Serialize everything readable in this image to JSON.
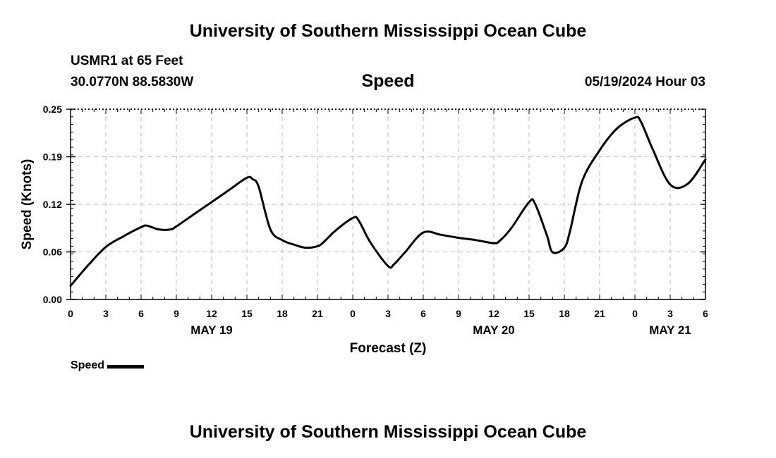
{
  "header": {
    "title": "University of Southern Mississippi Ocean Cube",
    "station": "USMR1 at 65 Feet",
    "coords": "30.0770N  88.5830W",
    "chart_title": "Speed",
    "date": "05/19/2024 Hour 03"
  },
  "footer": {
    "title": "University of Southern Mississippi Ocean Cube"
  },
  "legend": {
    "label": "Speed",
    "color": "#000000"
  },
  "chart_data": {
    "type": "line",
    "title": "Speed",
    "xlabel": "Forecast (Z)",
    "ylabel": "Speed (Knots)",
    "x_unit": "hours since 05/19/2024 00Z",
    "xlim": [
      0,
      54
    ],
    "ylim": [
      0,
      0.25
    ],
    "grid": true,
    "legend_position": "bottom-left",
    "x_tick_values": [
      0,
      3,
      6,
      9,
      12,
      15,
      18,
      21,
      24,
      27,
      30,
      33,
      36,
      39,
      42,
      45,
      48,
      51,
      54
    ],
    "x_tick_labels": [
      "0",
      "3",
      "6",
      "9",
      "12",
      "15",
      "18",
      "21",
      "0",
      "3",
      "6",
      "9",
      "12",
      "15",
      "18",
      "21",
      "0",
      "3",
      "6"
    ],
    "y_tick_values": [
      0.0,
      0.0625,
      0.125,
      0.1875,
      0.25
    ],
    "y_tick_labels": [
      "0.00",
      "0.06",
      "0.12",
      "0.19",
      "0.25"
    ],
    "date_labels": [
      {
        "label": "MAY 19",
        "x": 12
      },
      {
        "label": "MAY 20",
        "x": 36
      },
      {
        "label": "MAY 21",
        "x": 51
      }
    ],
    "series": [
      {
        "name": "Speed",
        "color": "#000000",
        "x": [
          0,
          1.5,
          3,
          4.5,
          6,
          6.5,
          7.5,
          8.5,
          9,
          10.5,
          12,
          13.5,
          15,
          15.5,
          16,
          17,
          18,
          19,
          20,
          21,
          21.5,
          22.5,
          24,
          24.5,
          25.5,
          27,
          27.5,
          28.5,
          30,
          31.5,
          33,
          34.5,
          36,
          36.5,
          37.5,
          39,
          39.5,
          40.5,
          41,
          42,
          42.5,
          43.5,
          45,
          46.5,
          48,
          48.5,
          49.5,
          51,
          52.5,
          54
        ],
        "y": [
          0.018,
          0.045,
          0.069,
          0.083,
          0.095,
          0.097,
          0.092,
          0.092,
          0.096,
          0.112,
          0.128,
          0.144,
          0.16,
          0.158,
          0.148,
          0.092,
          0.078,
          0.072,
          0.068,
          0.07,
          0.075,
          0.09,
          0.107,
          0.104,
          0.075,
          0.044,
          0.046,
          0.063,
          0.088,
          0.085,
          0.081,
          0.078,
          0.074,
          0.077,
          0.094,
          0.128,
          0.126,
          0.085,
          0.062,
          0.068,
          0.091,
          0.155,
          0.196,
          0.225,
          0.239,
          0.234,
          0.198,
          0.151,
          0.152,
          0.184
        ]
      }
    ]
  }
}
